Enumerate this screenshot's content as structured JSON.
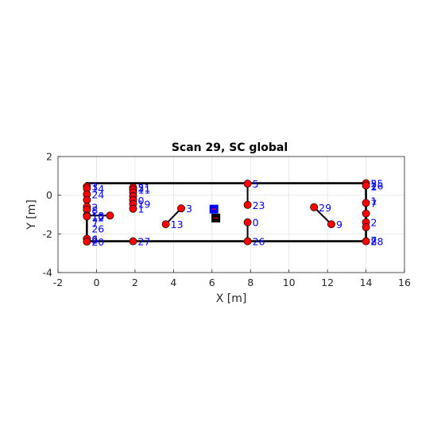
{
  "chart_data": {
    "type": "scatter",
    "title": "Scan 29, SC global",
    "xlabel": "X [m]",
    "ylabel": "Y [m]",
    "xlim": [
      -2,
      16
    ],
    "ylim": [
      -4,
      2
    ],
    "xticks": [
      "-2",
      "0",
      "2",
      "4",
      "6",
      "8",
      "10",
      "12",
      "14",
      "16"
    ],
    "yticks": [
      "-4",
      "-2",
      "0",
      "2"
    ],
    "grid": true,
    "colors": {
      "marker_fill": "#ff0000",
      "marker_edge": "#000000",
      "label": "#0000ff",
      "segment": "#000000",
      "pose_blue": "#0000ff",
      "pose_black": "#000000"
    },
    "walls": [
      {
        "x": [
          -0.5,
          14.0
        ],
        "y": [
          0.62,
          0.62
        ]
      },
      {
        "x": [
          -0.5,
          14.0
        ],
        "y": [
          -2.38,
          -2.38
        ]
      },
      {
        "x": [
          -0.5,
          -0.5
        ],
        "y": [
          0.62,
          -2.38
        ]
      },
      {
        "x": [
          14.0,
          14.0
        ],
        "y": [
          0.62,
          -2.38
        ]
      }
    ],
    "segments": [
      {
        "x": [
          7.85,
          7.85
        ],
        "y": [
          0.6,
          -0.5
        ]
      },
      {
        "x": [
          7.85,
          7.85
        ],
        "y": [
          -1.4,
          -2.38
        ]
      },
      {
        "x": [
          3.6,
          4.4
        ],
        "y": [
          -1.5,
          -0.68
        ]
      },
      {
        "x": [
          11.3,
          12.2
        ],
        "y": [
          -0.62,
          -1.5
        ]
      },
      {
        "x": [
          -0.5,
          0.7
        ],
        "y": [
          -1.05,
          -1.05
        ]
      },
      {
        "x": [
          1.9,
          1.9
        ],
        "y": [
          0.45,
          -0.75
        ]
      },
      {
        "x": [
          14.0,
          14.0
        ],
        "y": [
          -0.95,
          -2.38
        ]
      }
    ],
    "points": [
      {
        "x": -0.5,
        "y": 0.45,
        "label": "1"
      },
      {
        "x": -0.5,
        "y": 0.35,
        "label": "14"
      },
      {
        "x": -0.5,
        "y": 0.05,
        "label": "24"
      },
      {
        "x": -0.5,
        "y": -0.25,
        "label": ""
      },
      {
        "x": -0.5,
        "y": -0.6,
        "label": "2"
      },
      {
        "x": -0.5,
        "y": -0.75,
        "label": "8"
      },
      {
        "x": -0.5,
        "y": -1.05,
        "label": "18"
      },
      {
        "x": -0.5,
        "y": -1.1,
        "label": "10"
      },
      {
        "x": 0.7,
        "y": -1.05,
        "label": ""
      },
      {
        "x": -0.5,
        "y": -2.25,
        "label": "6"
      },
      {
        "x": -0.5,
        "y": -2.4,
        "label": "20"
      },
      {
        "x": 1.9,
        "y": 0.4,
        "label": "21"
      },
      {
        "x": 1.9,
        "y": 0.3,
        "label": "11"
      },
      {
        "x": 1.9,
        "y": 0.15,
        "label": ""
      },
      {
        "x": 1.9,
        "y": -0.05,
        "label": ""
      },
      {
        "x": 1.9,
        "y": -0.25,
        "label": "0"
      },
      {
        "x": 1.9,
        "y": -0.45,
        "label": "19"
      },
      {
        "x": 1.9,
        "y": -0.7,
        "label": "1"
      },
      {
        "x": 1.9,
        "y": -2.38,
        "label": "27"
      },
      {
        "x": 4.4,
        "y": -0.68,
        "label": "3"
      },
      {
        "x": 3.6,
        "y": -1.5,
        "label": "13"
      },
      {
        "x": 7.85,
        "y": 0.6,
        "label": "5"
      },
      {
        "x": 7.85,
        "y": -0.5,
        "label": "23"
      },
      {
        "x": 7.85,
        "y": -1.4,
        "label": "0"
      },
      {
        "x": 7.85,
        "y": -2.38,
        "label": "26"
      },
      {
        "x": 11.3,
        "y": -0.62,
        "label": "29"
      },
      {
        "x": 12.2,
        "y": -1.5,
        "label": "9"
      },
      {
        "x": 14.0,
        "y": 0.62,
        "label": "25"
      },
      {
        "x": 14.0,
        "y": 0.5,
        "label": "16"
      },
      {
        "x": 14.0,
        "y": -0.4,
        "label": "7"
      },
      {
        "x": 14.0,
        "y": -0.95,
        "label": ""
      },
      {
        "x": 14.0,
        "y": -1.4,
        "label": "2"
      },
      {
        "x": 14.0,
        "y": -1.65,
        "label": ""
      },
      {
        "x": 14.0,
        "y": -2.38,
        "label": "28"
      }
    ],
    "extra_labels": [
      {
        "x": -0.5,
        "y": 0.45,
        "text": "3"
      },
      {
        "x": -0.5,
        "y": -1.15,
        "text": "12"
      },
      {
        "x": -0.5,
        "y": -1.45,
        "text": "7"
      },
      {
        "x": -0.5,
        "y": -1.72,
        "text": "26"
      },
      {
        "x": -0.5,
        "y": -2.3,
        "text": "2"
      },
      {
        "x": 1.9,
        "y": 0.4,
        "text": "5"
      },
      {
        "x": 14.0,
        "y": 0.62,
        "text": "5"
      },
      {
        "x": 14.0,
        "y": 0.45,
        "text": "2"
      },
      {
        "x": 14.0,
        "y": -0.28,
        "text": "1"
      },
      {
        "x": 14.0,
        "y": -2.38,
        "text": "8"
      },
      {
        "x": 14.0,
        "y": -2.32,
        "text": "7"
      }
    ],
    "pose_markers": [
      {
        "x": 6.1,
        "y": -0.72,
        "color": "blue"
      },
      {
        "x": 6.2,
        "y": -1.18,
        "color": "black"
      }
    ]
  }
}
